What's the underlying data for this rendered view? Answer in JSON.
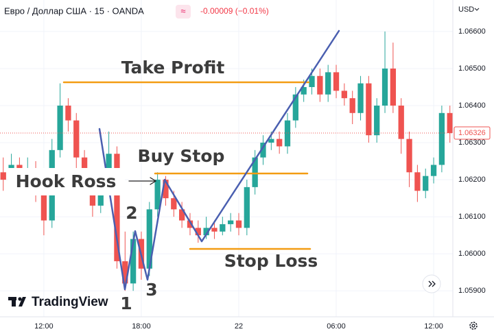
{
  "header": {
    "symbol": "Евро / Доллар США · 15 · OANDA",
    "badge": "≈",
    "change": "-0.00009 (−0.01%)",
    "currency": "USD"
  },
  "annotations": {
    "take_profit": "Take Profit",
    "buy_stop": "Buy Stop",
    "stop_loss": "Stop Loss",
    "hook": "Hook Ross",
    "point_1": "1",
    "point_2": "2",
    "point_3": "3"
  },
  "brand": "TradingView",
  "chart_data": {
    "type": "candlestick",
    "x": [
      9.5,
      10,
      10.5,
      11,
      11.5,
      12,
      12.5,
      13,
      13.5,
      14,
      14.5,
      15,
      15.5,
      16,
      16.5,
      17,
      17.5,
      18,
      18.5,
      19,
      19.5,
      20,
      20.5,
      21,
      21.5,
      22,
      22.5,
      23,
      23.5,
      24,
      24.5,
      25,
      25.5,
      26,
      26.5,
      27,
      27.5,
      28,
      28.5,
      29,
      29.5,
      30,
      30.5,
      31,
      31.5,
      32,
      32.5,
      33,
      33.5,
      34,
      34.5,
      35,
      35.5,
      36,
      36.5,
      37
    ],
    "open": [
      1.0622,
      1.062,
      1.0624,
      1.0619,
      1.0623,
      1.0617,
      1.0609,
      1.0628,
      1.064,
      1.0636,
      1.0626,
      1.0619,
      1.0613,
      1.062,
      1.0627,
      1.0598,
      1.0592,
      1.0604,
      1.0596,
      1.0612,
      1.062,
      1.0615,
      1.0612,
      1.0609,
      1.0607,
      1.0605,
      1.0607,
      1.0606,
      1.0608,
      1.0609,
      1.0607,
      1.0618,
      1.0626,
      1.063,
      1.0631,
      1.0629,
      1.0636,
      1.0643,
      1.0645,
      1.0648,
      1.0643,
      1.0649,
      1.0644,
      1.0642,
      1.0638,
      1.0646,
      1.0632,
      1.064,
      1.065,
      1.064,
      1.0631,
      1.0622,
      1.0617,
      1.0621,
      1.0624,
      1.0638
    ],
    "high": [
      1.0626,
      1.0627,
      1.0626,
      1.0626,
      1.0625,
      1.0619,
      1.0631,
      1.0646,
      1.0642,
      1.0638,
      1.0628,
      1.0621,
      1.0622,
      1.0633,
      1.0629,
      1.0606,
      1.0606,
      1.0606,
      1.0614,
      1.0622,
      1.0621,
      1.0617,
      1.0614,
      1.0611,
      1.0609,
      1.061,
      1.0609,
      1.061,
      1.0611,
      1.0611,
      1.062,
      1.0628,
      1.0632,
      1.0633,
      1.0633,
      1.0638,
      1.0645,
      1.0647,
      1.065,
      1.065,
      1.0651,
      1.0651,
      1.0646,
      1.0644,
      1.0648,
      1.0648,
      1.0642,
      1.066,
      1.0657,
      1.0642,
      1.0633,
      1.0624,
      1.0623,
      1.0626,
      1.064,
      1.064
    ],
    "low": [
      1.0617,
      1.0618,
      1.0616,
      1.0616,
      1.0614,
      1.0605,
      1.0607,
      1.0626,
      1.0633,
      1.0623,
      1.0617,
      1.061,
      1.0611,
      1.0618,
      1.0596,
      1.059,
      1.059,
      1.0593,
      1.0594,
      1.061,
      1.0613,
      1.061,
      1.0607,
      1.0605,
      1.0603,
      1.0604,
      1.0604,
      1.0605,
      1.0606,
      1.0605,
      1.0605,
      1.0616,
      1.0624,
      1.0628,
      1.0627,
      1.0627,
      1.0634,
      1.0641,
      1.0643,
      1.0641,
      1.0641,
      1.0642,
      1.064,
      1.0635,
      1.0636,
      1.063,
      1.063,
      1.0638,
      1.0638,
      1.0627,
      1.0618,
      1.0614,
      1.0615,
      1.0619,
      1.0622,
      1.063
    ],
    "close": [
      1.062,
      1.0624,
      1.0619,
      1.0623,
      1.0617,
      1.0609,
      1.0628,
      1.064,
      1.0636,
      1.0626,
      1.0619,
      1.0613,
      1.062,
      1.0627,
      1.0598,
      1.0592,
      1.0604,
      1.0596,
      1.0612,
      1.062,
      1.0615,
      1.0612,
      1.0609,
      1.0607,
      1.0605,
      1.0607,
      1.0606,
      1.0608,
      1.0609,
      1.0607,
      1.0618,
      1.0626,
      1.063,
      1.0631,
      1.0629,
      1.0636,
      1.0643,
      1.0645,
      1.0648,
      1.0643,
      1.0649,
      1.0644,
      1.0642,
      1.0638,
      1.0646,
      1.0632,
      1.064,
      1.065,
      1.064,
      1.0631,
      1.0622,
      1.0617,
      1.0621,
      1.0624,
      1.0638,
      1.06326
    ],
    "up_color": "#26a69a",
    "down_color": "#ef5350",
    "xlim": [
      9.3,
      37.18
    ],
    "xticks": [
      {
        "value": 12,
        "label": "12:00"
      },
      {
        "value": 18,
        "label": "18:00"
      },
      {
        "value": 24,
        "label": "22"
      },
      {
        "value": 30,
        "label": "06:00"
      },
      {
        "value": 36,
        "label": "12:00"
      }
    ],
    "ylim": [
      1.0583,
      1.06685
    ],
    "yticks": [
      {
        "value": 1.059,
        "label": "1.05900"
      },
      {
        "value": 1.06,
        "label": "1.06000"
      },
      {
        "value": 1.061,
        "label": "1.06100"
      },
      {
        "value": 1.062,
        "label": "1.06200"
      },
      {
        "value": 1.063,
        "label": "1.06300"
      },
      {
        "value": 1.064,
        "label": "1.06400"
      },
      {
        "value": 1.065,
        "label": "1.06500"
      },
      {
        "value": 1.066,
        "label": "1.06600"
      }
    ],
    "grid": true,
    "last_price": 1.06326
  }
}
